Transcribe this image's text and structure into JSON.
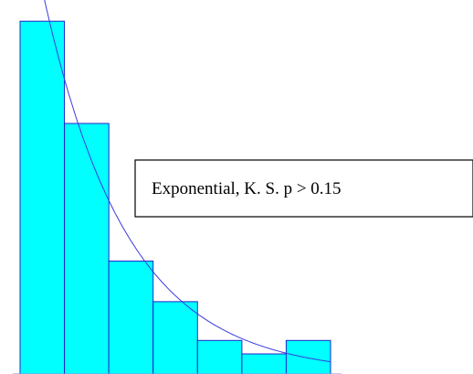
{
  "chart_data": {
    "type": "bar",
    "subtype": "histogram-with-fitted-curve",
    "bins": 7,
    "values": [
      1.0,
      0.71,
      0.32,
      0.205,
      0.095,
      0.057,
      0.095
    ],
    "ylim": [
      0,
      1.06
    ],
    "fitted_curve": {
      "distribution": "Exponential",
      "shape": "decreasing exponential density overlaid on the bars"
    },
    "annotation": "Exponential,  K. S. p > 0.15",
    "title": "",
    "xlabel": "",
    "ylabel": "",
    "grid": false,
    "legend": "none",
    "colors": {
      "bar_fill": "#00ffff",
      "bar_edge": "#2323c8",
      "curve": "#3a3ae0",
      "annotation_border": "#000000"
    }
  }
}
